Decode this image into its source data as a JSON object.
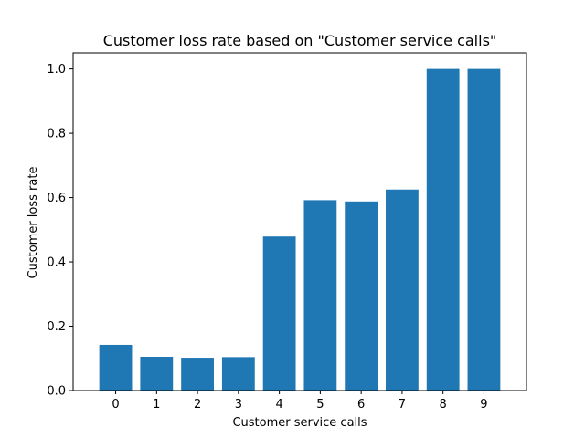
{
  "chart_data": {
    "type": "bar",
    "title": "Customer loss rate based on \"Customer service calls\"",
    "xlabel": "Customer service calls",
    "ylabel": "Customer loss rate",
    "categories": [
      "0",
      "1",
      "2",
      "3",
      "4",
      "5",
      "6",
      "7",
      "8",
      "9"
    ],
    "values": [
      0.142,
      0.105,
      0.102,
      0.104,
      0.479,
      0.592,
      0.588,
      0.625,
      1.0,
      1.0
    ],
    "ylim": [
      0,
      1.05
    ],
    "yticks": [
      "0.0",
      "0.2",
      "0.4",
      "0.6",
      "0.8",
      "1.0"
    ],
    "grid": false,
    "bar_color": "#1f77b4"
  }
}
